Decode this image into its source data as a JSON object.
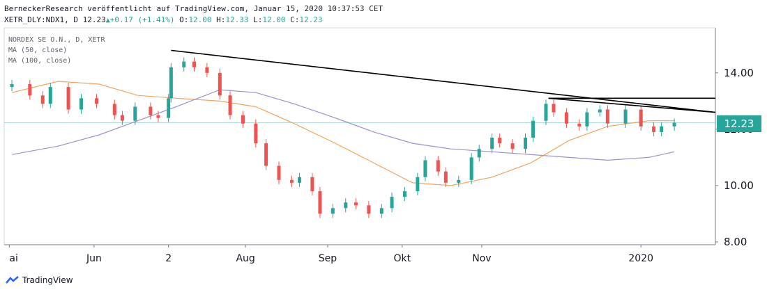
{
  "header": {
    "publisher_line": "BerneckerResearch veröffentlicht auf TradingView.com, Januar 15, 2020 10:37:53 CET",
    "symbol": "XETR_DLY:NDX1, D",
    "last": "12.23",
    "change": "+0.17 (+1.41%)",
    "o_label": "O:",
    "o": "12.00",
    "h_label": "H:",
    "h": "12.33",
    "l_label": "L:",
    "l": "12.00",
    "c_label": "C:",
    "c": "12.23"
  },
  "legend": {
    "instrument": "NORDEX SE O.N., D, XETR",
    "ma50": "MA (50, close)",
    "ma100": "MA (100, close)"
  },
  "price_tag": "12.23",
  "footer": {
    "brand": "TradingView"
  },
  "colors": {
    "up": "#26a69a",
    "down": "#ef5350",
    "ma50": "#f5a35c",
    "ma100": "#9b8fd0",
    "trendline": "#000000",
    "last_price_line": "#26a69a"
  },
  "chart_data": {
    "type": "candlestick",
    "title": "NORDEX SE O.N., D, XETR",
    "xlabel": "",
    "ylabel": "",
    "ylim": [
      7.9,
      15.6
    ],
    "yticks": [
      "14.00",
      "12.00",
      "10.00",
      "8.00"
    ],
    "ytick_values": [
      14,
      12,
      10,
      8
    ],
    "xticks": [
      {
        "label": "ai",
        "date": "2019-05-01"
      },
      {
        "label": "Jun",
        "date": "2019-06-03"
      },
      {
        "label": "2",
        "date": "2019-07-02"
      },
      {
        "label": "Aug",
        "date": "2019-08-01"
      },
      {
        "label": "Sep",
        "date": "2019-09-02"
      },
      {
        "label": "Okt",
        "date": "2019-10-01"
      },
      {
        "label": "Nov",
        "date": "2019-11-01"
      },
      {
        "label": "2020",
        "date": "2020-01-02"
      }
    ],
    "close_series": [
      {
        "date": "2019-05-02",
        "close": 13.6
      },
      {
        "date": "2019-05-09",
        "close": 13.2
      },
      {
        "date": "2019-05-14",
        "close": 12.9
      },
      {
        "date": "2019-05-17",
        "close": 13.5
      },
      {
        "date": "2019-05-24",
        "close": 12.7
      },
      {
        "date": "2019-05-29",
        "close": 13.1
      },
      {
        "date": "2019-06-04",
        "close": 12.9
      },
      {
        "date": "2019-06-11",
        "close": 12.5
      },
      {
        "date": "2019-06-14",
        "close": 12.3
      },
      {
        "date": "2019-06-19",
        "close": 12.8
      },
      {
        "date": "2019-06-25",
        "close": 12.5
      },
      {
        "date": "2019-06-28",
        "close": 12.4
      },
      {
        "date": "2019-07-02",
        "close": 13.1
      },
      {
        "date": "2019-07-03",
        "close": 14.2
      },
      {
        "date": "2019-07-08",
        "close": 14.4
      },
      {
        "date": "2019-07-12",
        "close": 14.2
      },
      {
        "date": "2019-07-17",
        "close": 14.0
      },
      {
        "date": "2019-07-22",
        "close": 13.2
      },
      {
        "date": "2019-07-26",
        "close": 12.5
      },
      {
        "date": "2019-07-31",
        "close": 12.2
      },
      {
        "date": "2019-08-05",
        "close": 11.5
      },
      {
        "date": "2019-08-09",
        "close": 10.7
      },
      {
        "date": "2019-08-14",
        "close": 10.2
      },
      {
        "date": "2019-08-19",
        "close": 10.1
      },
      {
        "date": "2019-08-22",
        "close": 10.3
      },
      {
        "date": "2019-08-27",
        "close": 9.8
      },
      {
        "date": "2019-08-30",
        "close": 9.0
      },
      {
        "date": "2019-09-04",
        "close": 9.2
      },
      {
        "date": "2019-09-09",
        "close": 9.4
      },
      {
        "date": "2019-09-13",
        "close": 9.3
      },
      {
        "date": "2019-09-18",
        "close": 9.0
      },
      {
        "date": "2019-09-23",
        "close": 9.2
      },
      {
        "date": "2019-09-27",
        "close": 9.6
      },
      {
        "date": "2019-10-02",
        "close": 9.8
      },
      {
        "date": "2019-10-07",
        "close": 10.3
      },
      {
        "date": "2019-10-10",
        "close": 10.9
      },
      {
        "date": "2019-10-15",
        "close": 10.5
      },
      {
        "date": "2019-10-18",
        "close": 10.1
      },
      {
        "date": "2019-10-23",
        "close": 10.2
      },
      {
        "date": "2019-10-28",
        "close": 11.0
      },
      {
        "date": "2019-10-31",
        "close": 11.3
      },
      {
        "date": "2019-11-05",
        "close": 11.7
      },
      {
        "date": "2019-11-08",
        "close": 11.5
      },
      {
        "date": "2019-11-13",
        "close": 11.3
      },
      {
        "date": "2019-11-18",
        "close": 11.7
      },
      {
        "date": "2019-11-21",
        "close": 12.3
      },
      {
        "date": "2019-11-26",
        "close": 12.9
      },
      {
        "date": "2019-11-29",
        "close": 12.6
      },
      {
        "date": "2019-12-04",
        "close": 12.2
      },
      {
        "date": "2019-12-09",
        "close": 12.1
      },
      {
        "date": "2019-12-12",
        "close": 12.6
      },
      {
        "date": "2019-12-17",
        "close": 12.7
      },
      {
        "date": "2019-12-20",
        "close": 12.2
      },
      {
        "date": "2019-12-27",
        "close": 12.7
      },
      {
        "date": "2020-01-02",
        "close": 12.1
      },
      {
        "date": "2020-01-07",
        "close": 11.9
      },
      {
        "date": "2020-01-10",
        "close": 12.1
      },
      {
        "date": "2020-01-15",
        "close": 12.23
      }
    ],
    "series": [
      {
        "name": "MA (50, close)",
        "values": [
          {
            "date": "2019-05-02",
            "value": 13.3
          },
          {
            "date": "2019-05-20",
            "value": 13.7
          },
          {
            "date": "2019-06-05",
            "value": 13.6
          },
          {
            "date": "2019-06-20",
            "value": 13.2
          },
          {
            "date": "2019-07-05",
            "value": 13.1
          },
          {
            "date": "2019-07-22",
            "value": 13.0
          },
          {
            "date": "2019-08-05",
            "value": 12.8
          },
          {
            "date": "2019-08-20",
            "value": 12.2
          },
          {
            "date": "2019-09-05",
            "value": 11.5
          },
          {
            "date": "2019-09-20",
            "value": 10.8
          },
          {
            "date": "2019-10-05",
            "value": 10.1
          },
          {
            "date": "2019-10-20",
            "value": 10.0
          },
          {
            "date": "2019-11-05",
            "value": 10.3
          },
          {
            "date": "2019-11-20",
            "value": 10.8
          },
          {
            "date": "2019-12-05",
            "value": 11.6
          },
          {
            "date": "2019-12-20",
            "value": 12.1
          },
          {
            "date": "2020-01-05",
            "value": 12.3
          },
          {
            "date": "2020-01-15",
            "value": 12.3
          }
        ]
      },
      {
        "name": "MA (100, close)",
        "values": [
          {
            "date": "2019-05-02",
            "value": 11.1
          },
          {
            "date": "2019-05-20",
            "value": 11.4
          },
          {
            "date": "2019-06-05",
            "value": 11.8
          },
          {
            "date": "2019-06-20",
            "value": 12.3
          },
          {
            "date": "2019-07-05",
            "value": 12.8
          },
          {
            "date": "2019-07-22",
            "value": 13.4
          },
          {
            "date": "2019-08-05",
            "value": 13.3
          },
          {
            "date": "2019-08-20",
            "value": 12.9
          },
          {
            "date": "2019-09-05",
            "value": 12.4
          },
          {
            "date": "2019-09-20",
            "value": 11.9
          },
          {
            "date": "2019-10-05",
            "value": 11.5
          },
          {
            "date": "2019-10-20",
            "value": 11.3
          },
          {
            "date": "2019-11-05",
            "value": 11.2
          },
          {
            "date": "2019-11-20",
            "value": 11.1
          },
          {
            "date": "2019-12-05",
            "value": 11.0
          },
          {
            "date": "2019-12-20",
            "value": 10.9
          },
          {
            "date": "2020-01-05",
            "value": 11.0
          },
          {
            "date": "2020-01-15",
            "value": 11.2
          }
        ]
      }
    ],
    "trendlines": [
      {
        "start": {
          "date": "2019-07-03",
          "value": 14.8
        },
        "end": {
          "date": "2020-01-31",
          "value": 12.6
        }
      },
      {
        "start": {
          "date": "2019-11-27",
          "value": 13.1
        },
        "end": {
          "date": "2020-01-31",
          "value": 12.6
        }
      },
      {
        "start": {
          "date": "2019-11-27",
          "value": 13.1
        },
        "end": {
          "date": "2020-01-31",
          "value": 13.1
        }
      }
    ],
    "last_price": 12.23,
    "grid": false
  }
}
